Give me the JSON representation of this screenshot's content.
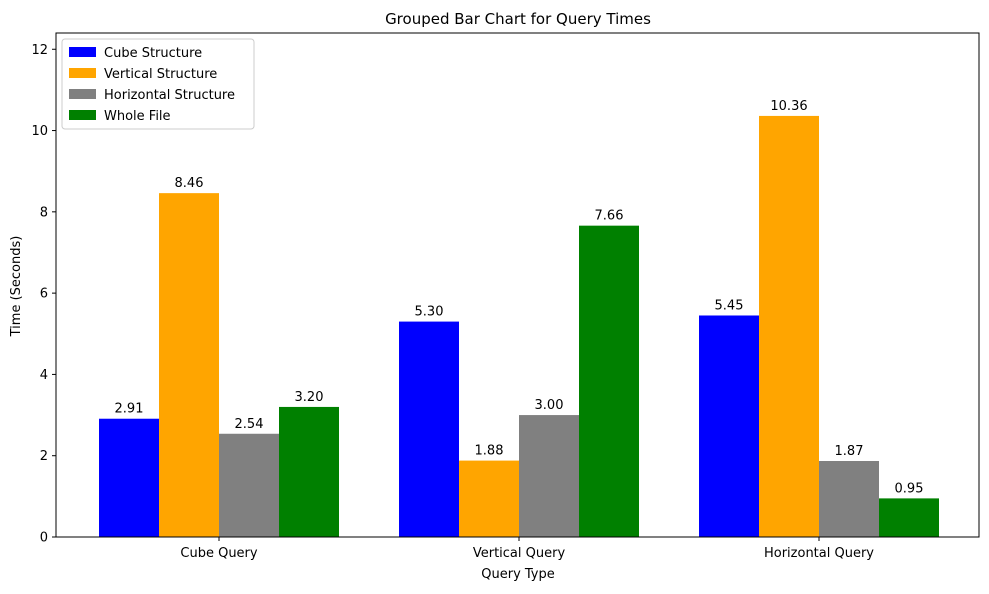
{
  "chart_data": {
    "type": "bar",
    "title": "Grouped Bar Chart for Query Times",
    "xlabel": "Query Type",
    "ylabel": "Time (Seconds)",
    "categories": [
      "Cube Query",
      "Vertical Query",
      "Horizontal Query"
    ],
    "series": [
      {
        "name": "Cube Structure",
        "color": "#0000ff",
        "values": [
          2.91,
          5.3,
          5.45
        ]
      },
      {
        "name": "Vertical Structure",
        "color": "#ffa500",
        "values": [
          8.46,
          1.88,
          10.36
        ]
      },
      {
        "name": "Horizontal Structure",
        "color": "#808080",
        "values": [
          2.54,
          3.0,
          1.87
        ]
      },
      {
        "name": "Whole File",
        "color": "#008000",
        "values": [
          3.2,
          7.66,
          0.95
        ]
      }
    ],
    "ylim": [
      0,
      12.4
    ],
    "yticks": [
      0,
      2,
      4,
      6,
      8,
      10,
      12
    ],
    "value_label_format": "2 decimals",
    "grid": false,
    "legend": "top-left"
  }
}
